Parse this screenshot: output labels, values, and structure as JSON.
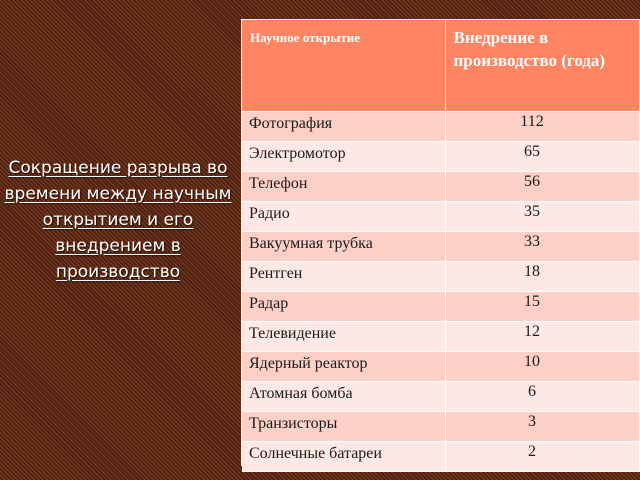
{
  "caption": "Сокращение разрыва во времени между научным открытием и его внедрением в производство",
  "table": {
    "headers": [
      "Научное открытие",
      "Внедрение в производство (года)"
    ],
    "rows": [
      {
        "discovery": "Фотография",
        "years": "112"
      },
      {
        "discovery": "Электромотор",
        "years": "65"
      },
      {
        "discovery": "Телефон",
        "years": "56"
      },
      {
        "discovery": "Радио",
        "years": "35"
      },
      {
        "discovery": "Вакуумная трубка",
        "years": "33"
      },
      {
        "discovery": "Рентген",
        "years": "18"
      },
      {
        "discovery": "Радар",
        "years": "15"
      },
      {
        "discovery": "Телевидение",
        "years": "12"
      },
      {
        "discovery": "Ядерный реактор",
        "years": "10"
      },
      {
        "discovery": "Атомная бомба",
        "years": "6"
      },
      {
        "discovery": "Транзисторы",
        "years": "3"
      },
      {
        "discovery": "Солнечные батареи",
        "years": "2"
      }
    ]
  },
  "colors": {
    "header": "#ff8562",
    "row_odd": "#fcd0c6",
    "row_even": "#fde8e3",
    "background": "#5b2a14"
  }
}
